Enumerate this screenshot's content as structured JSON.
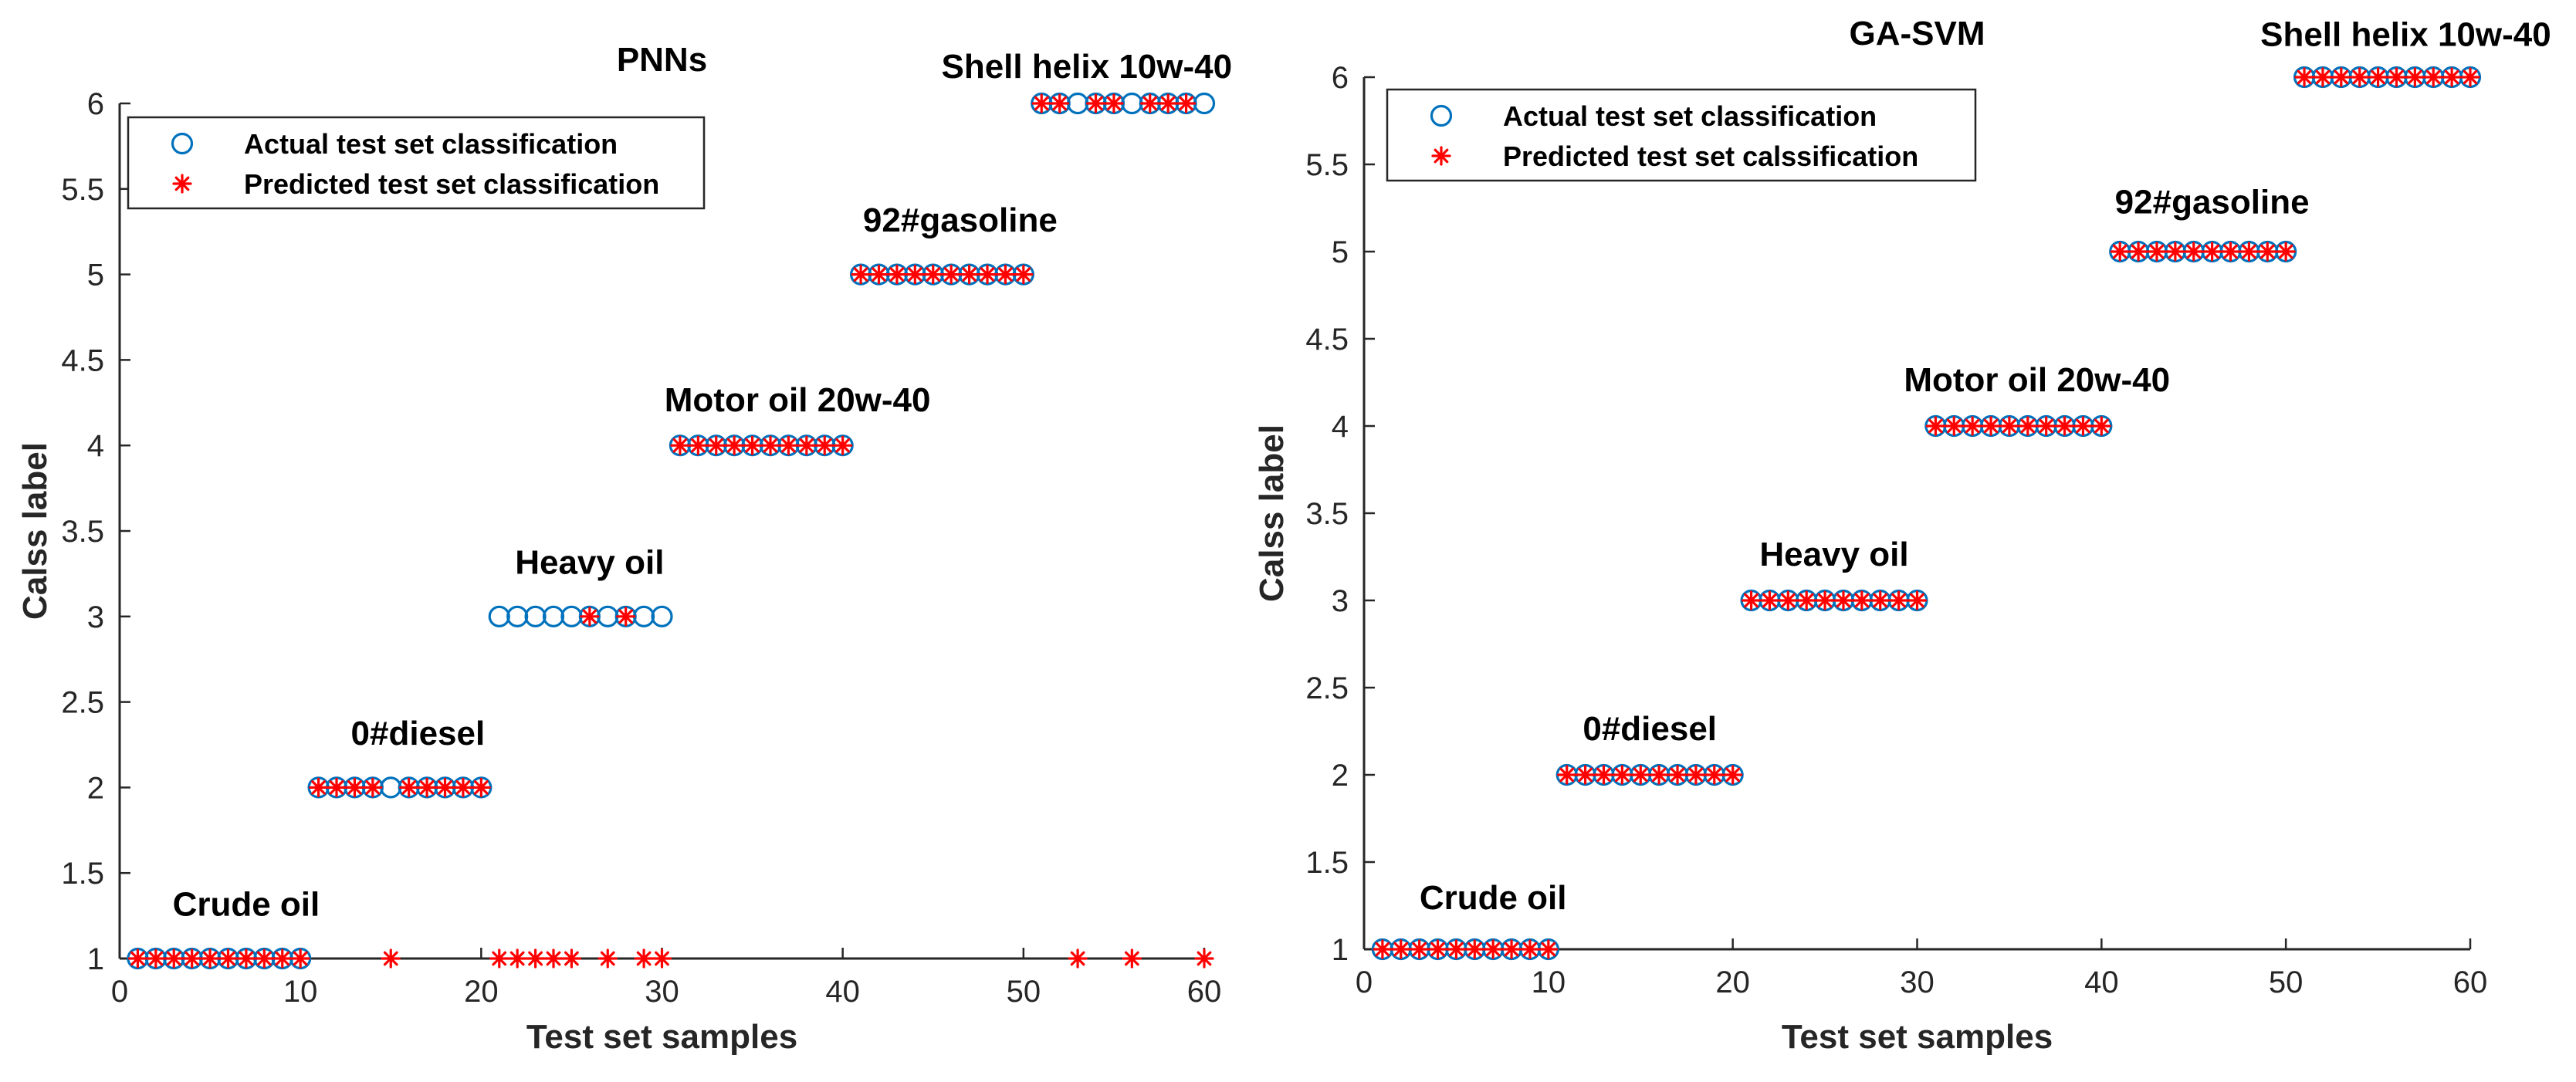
{
  "chart_data": [
    {
      "type": "scatter",
      "title": "PNNs",
      "xlabel": "Test set samples",
      "ylabel": "Calss label",
      "xlim": [
        0,
        60
      ],
      "ylim": [
        1,
        6
      ],
      "xticks": [
        0,
        10,
        20,
        30,
        40,
        50,
        60
      ],
      "yticks": [
        1,
        1.5,
        2,
        2.5,
        3,
        3.5,
        4,
        4.5,
        5,
        5.5,
        6
      ],
      "legend": {
        "position": "top-left",
        "entries": [
          {
            "label": "Actual test set classification",
            "marker": "circle",
            "color": "#0072BD"
          },
          {
            "label": "Predicted test set classification",
            "marker": "asterisk",
            "color": "#FF0000"
          }
        ]
      },
      "annotations": [
        {
          "text": "Crude oil",
          "x": 7,
          "y": 1.25
        },
        {
          "text": "0#diesel",
          "x": 16.5,
          "y": 2.25
        },
        {
          "text": "Heavy oil",
          "x": 26,
          "y": 3.25
        },
        {
          "text": "Motor oil 20w-40",
          "x": 37.5,
          "y": 4.2
        },
        {
          "text": "92#gasoline",
          "x": 46.5,
          "y": 5.25
        },
        {
          "text": "Shell helix 10w-40",
          "x": 53.5,
          "y": 6.15
        }
      ],
      "series": [
        {
          "name": "Actual test set classification",
          "x": [
            1,
            2,
            3,
            4,
            5,
            6,
            7,
            8,
            9,
            10,
            11,
            12,
            13,
            14,
            15,
            16,
            17,
            18,
            19,
            20,
            21,
            22,
            23,
            24,
            25,
            26,
            27,
            28,
            29,
            30,
            31,
            32,
            33,
            34,
            35,
            36,
            37,
            38,
            39,
            40,
            41,
            42,
            43,
            44,
            45,
            46,
            47,
            48,
            49,
            50,
            51,
            52,
            53,
            54,
            55,
            56,
            57,
            58,
            59,
            60
          ],
          "y": [
            1,
            1,
            1,
            1,
            1,
            1,
            1,
            1,
            1,
            1,
            2,
            2,
            2,
            2,
            2,
            2,
            2,
            2,
            2,
            2,
            3,
            3,
            3,
            3,
            3,
            3,
            3,
            3,
            3,
            3,
            4,
            4,
            4,
            4,
            4,
            4,
            4,
            4,
            4,
            4,
            5,
            5,
            5,
            5,
            5,
            5,
            5,
            5,
            5,
            5,
            6,
            6,
            6,
            6,
            6,
            6,
            6,
            6,
            6,
            6
          ]
        },
        {
          "name": "Predicted test set classification",
          "x": [
            1,
            2,
            3,
            4,
            5,
            6,
            7,
            8,
            9,
            10,
            11,
            12,
            13,
            14,
            15,
            16,
            17,
            18,
            19,
            20,
            21,
            22,
            23,
            24,
            25,
            26,
            27,
            28,
            29,
            30,
            31,
            32,
            33,
            34,
            35,
            36,
            37,
            38,
            39,
            40,
            41,
            42,
            43,
            44,
            45,
            46,
            47,
            48,
            49,
            50,
            51,
            52,
            53,
            54,
            55,
            56,
            57,
            58,
            59,
            60
          ],
          "y": [
            1,
            1,
            1,
            1,
            1,
            1,
            1,
            1,
            1,
            1,
            2,
            2,
            2,
            2,
            1,
            2,
            2,
            2,
            2,
            2,
            1,
            1,
            1,
            1,
            1,
            3,
            1,
            3,
            1,
            1,
            4,
            4,
            4,
            4,
            4,
            4,
            4,
            4,
            4,
            4,
            5,
            5,
            5,
            5,
            5,
            5,
            5,
            5,
            5,
            5,
            6,
            6,
            1,
            6,
            6,
            1,
            6,
            6,
            6,
            1
          ]
        }
      ]
    },
    {
      "type": "scatter",
      "title": "GA-SVM",
      "xlabel": "Test set samples",
      "ylabel": "Calss label",
      "xlim": [
        0,
        60
      ],
      "ylim": [
        1,
        6
      ],
      "xticks": [
        0,
        10,
        20,
        30,
        40,
        50,
        60
      ],
      "yticks": [
        1,
        1.5,
        2,
        2.5,
        3,
        3.5,
        4,
        4.5,
        5,
        5.5,
        6
      ],
      "legend": {
        "position": "top-left",
        "entries": [
          {
            "label": "Actual test set classification",
            "marker": "circle",
            "color": "#0072BD"
          },
          {
            "label": "Predicted test set calssification",
            "marker": "asterisk",
            "color": "#FF0000"
          }
        ]
      },
      "annotations": [
        {
          "text": "Crude oil",
          "x": 7,
          "y": 1.23
        },
        {
          "text": "0#diesel",
          "x": 15.5,
          "y": 2.2
        },
        {
          "text": "Heavy oil",
          "x": 25.5,
          "y": 3.2
        },
        {
          "text": "Motor oil 20w-40",
          "x": 36.5,
          "y": 4.2
        },
        {
          "text": "92#gasoline",
          "x": 46,
          "y": 5.22
        },
        {
          "text": "Shell helix 10w-40",
          "x": 56.5,
          "y": 6.18
        }
      ],
      "series": [
        {
          "name": "Actual test set classification",
          "x": [
            1,
            2,
            3,
            4,
            5,
            6,
            7,
            8,
            9,
            10,
            11,
            12,
            13,
            14,
            15,
            16,
            17,
            18,
            19,
            20,
            21,
            22,
            23,
            24,
            25,
            26,
            27,
            28,
            29,
            30,
            31,
            32,
            33,
            34,
            35,
            36,
            37,
            38,
            39,
            40,
            41,
            42,
            43,
            44,
            45,
            46,
            47,
            48,
            49,
            50,
            51,
            52,
            53,
            54,
            55,
            56,
            57,
            58,
            59,
            60
          ],
          "y": [
            1,
            1,
            1,
            1,
            1,
            1,
            1,
            1,
            1,
            1,
            2,
            2,
            2,
            2,
            2,
            2,
            2,
            2,
            2,
            2,
            3,
            3,
            3,
            3,
            3,
            3,
            3,
            3,
            3,
            3,
            4,
            4,
            4,
            4,
            4,
            4,
            4,
            4,
            4,
            4,
            5,
            5,
            5,
            5,
            5,
            5,
            5,
            5,
            5,
            5,
            6,
            6,
            6,
            6,
            6,
            6,
            6,
            6,
            6,
            6
          ]
        },
        {
          "name": "Predicted test set calssification",
          "x": [
            1,
            2,
            3,
            4,
            5,
            6,
            7,
            8,
            9,
            10,
            11,
            12,
            13,
            14,
            15,
            16,
            17,
            18,
            19,
            20,
            21,
            22,
            23,
            24,
            25,
            26,
            27,
            28,
            29,
            30,
            31,
            32,
            33,
            34,
            35,
            36,
            37,
            38,
            39,
            40,
            41,
            42,
            43,
            44,
            45,
            46,
            47,
            48,
            49,
            50,
            51,
            52,
            53,
            54,
            55,
            56,
            57,
            58,
            59,
            60
          ],
          "y": [
            1,
            1,
            1,
            1,
            1,
            1,
            1,
            1,
            1,
            1,
            2,
            2,
            2,
            2,
            2,
            2,
            2,
            2,
            2,
            2,
            3,
            3,
            3,
            3,
            3,
            3,
            3,
            3,
            3,
            3,
            4,
            4,
            4,
            4,
            4,
            4,
            4,
            4,
            4,
            4,
            5,
            5,
            5,
            5,
            5,
            5,
            5,
            5,
            5,
            5,
            6,
            6,
            6,
            6,
            6,
            6,
            6,
            6,
            6,
            6
          ]
        }
      ]
    }
  ]
}
